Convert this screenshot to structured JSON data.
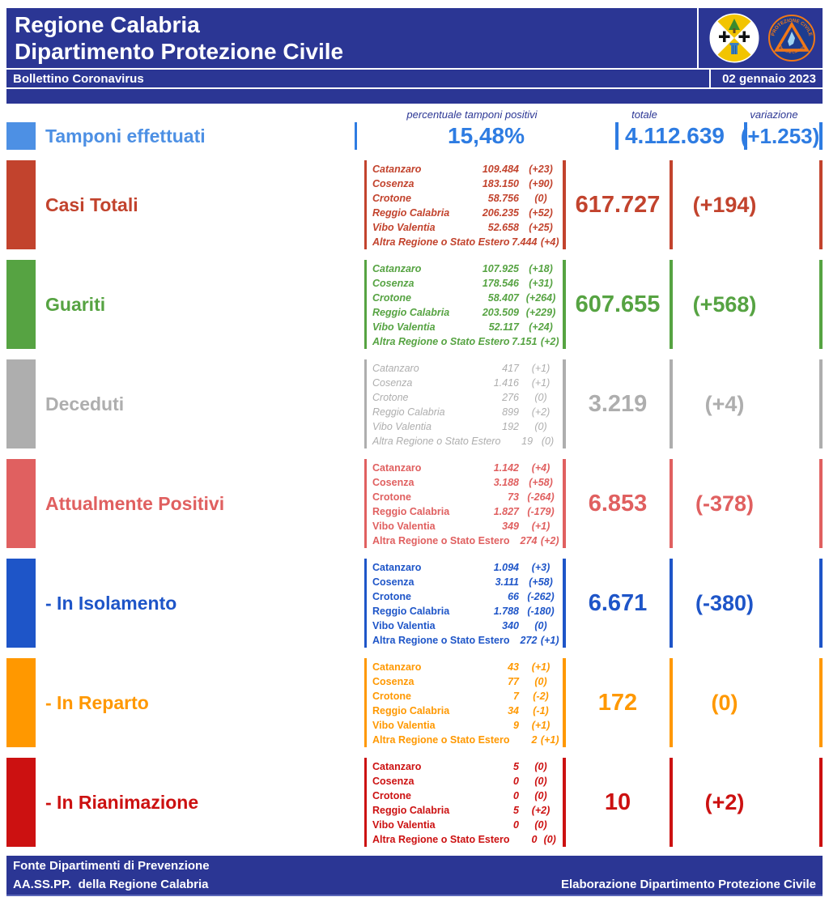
{
  "page": {
    "title_line1": "Regione Calabria",
    "title_line2": "Dipartimento Protezione Civile",
    "bulletin_title": "Bollettino Coronavirus",
    "date": "02 gennaio 2023"
  },
  "columns": {
    "percent": "percentuale tamponi positivi",
    "total": "totale",
    "variation": "variazione"
  },
  "tamponi": {
    "label": "Tamponi effettuati",
    "percent": "15,48%",
    "total": "4.112.639",
    "variation": "(+1.253)",
    "swatch_color": "#4d90e4",
    "value_color": "#2e7ce2"
  },
  "provinces": [
    "Catanzaro",
    "Cosenza",
    "Crotone",
    "Reggio Calabria",
    "Vibo Valentia",
    "Altra Regione o Stato Estero"
  ],
  "rows": [
    {
      "id": "casi-totali",
      "label": "Casi Totali",
      "color": "#c2432d",
      "name_italic": true,
      "light": false,
      "values": [
        "109.484",
        "183.150",
        "58.756",
        "206.235",
        "52.658",
        "7.444"
      ],
      "changes": [
        "(+23)",
        "(+90)",
        "(0)",
        "(+52)",
        "(+25)",
        "(+4)"
      ],
      "total": "617.727",
      "variation": "(+194)"
    },
    {
      "id": "guariti",
      "label": "Guariti",
      "color": "#56a342",
      "name_italic": true,
      "light": false,
      "values": [
        "107.925",
        "178.546",
        "58.407",
        "203.509",
        "52.117",
        "7.151"
      ],
      "changes": [
        "(+18)",
        "(+31)",
        "(+264)",
        "(+229)",
        "(+24)",
        "(+2)"
      ],
      "total": "607.655",
      "variation": "(+568)"
    },
    {
      "id": "deceduti",
      "label": "Deceduti",
      "color": "#aeaeae",
      "name_italic": true,
      "light": true,
      "values": [
        "417",
        "1.416",
        "276",
        "899",
        "192",
        "19"
      ],
      "changes": [
        "(+1)",
        "(+1)",
        "(0)",
        "(+2)",
        "(0)",
        "(0)"
      ],
      "total": "3.219",
      "variation": "(+4)"
    },
    {
      "id": "attualmente-positivi",
      "label": "Attualmente Positivi",
      "color": "#e06060",
      "name_italic": false,
      "light": false,
      "values": [
        "1.142",
        "3.188",
        "73",
        "1.827",
        "349",
        "274"
      ],
      "changes": [
        "(+4)",
        "(+58)",
        "(-264)",
        "(-179)",
        "(+1)",
        "(+2)"
      ],
      "total": "6.853",
      "variation": "(-378)"
    },
    {
      "id": "in-isolamento",
      "label": "- In Isolamento",
      "color": "#1e55c8",
      "name_italic": false,
      "light": false,
      "values": [
        "1.094",
        "3.111",
        "66",
        "1.788",
        "340",
        "272"
      ],
      "changes": [
        "(+3)",
        "(+58)",
        "(-262)",
        "(-180)",
        "(0)",
        "(+1)"
      ],
      "total": "6.671",
      "variation": "(-380)"
    },
    {
      "id": "in-reparto",
      "label": "- In Reparto",
      "color": "#ff9800",
      "name_italic": false,
      "light": false,
      "values": [
        "43",
        "77",
        "7",
        "34",
        "9",
        "2"
      ],
      "changes": [
        "(+1)",
        "(0)",
        "(-2)",
        "(-1)",
        "(+1)",
        "(+1)"
      ],
      "total": "172",
      "variation": "(0)"
    },
    {
      "id": "in-rianimazione",
      "label": "- In Rianimazione",
      "color": "#cc1111",
      "name_italic": false,
      "light": false,
      "values": [
        "5",
        "0",
        "0",
        "5",
        "0",
        "0"
      ],
      "changes": [
        "(0)",
        "(0)",
        "(0)",
        "(+2)",
        "(0)",
        "(0)"
      ],
      "total": "10",
      "variation": "(+2)"
    }
  ],
  "footer": {
    "line1": "Fonte Dipartimenti di Prevenzione",
    "line2_left": "AA.SS.PP.  della Regione Calabria",
    "line2_right": "Elaborazione Dipartimento Protezione Civile"
  },
  "logos": {
    "left_name": "regione-calabria-crest",
    "right_name": "protezione-civile-badge",
    "pc_text_top": "PROTEZIONE CIVILE",
    "pc_text_bottom": "Regione Calabria"
  },
  "colors": {
    "navy": "#2b3694",
    "page_background": "#ffffff",
    "header_text": "#ffffff"
  }
}
